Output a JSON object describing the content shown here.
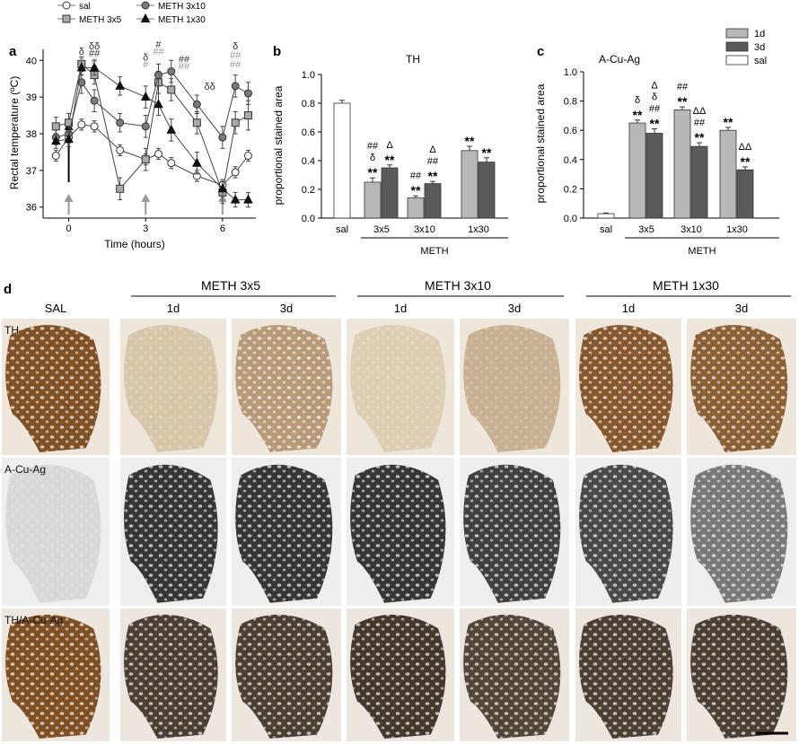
{
  "panel_labels": {
    "a": "a",
    "b": "b",
    "c": "c",
    "d": "d"
  },
  "colors": {
    "sal_fill": "#ffffff",
    "meth3x5_fill": "#a9a9a9",
    "meth3x10_fill": "#7a7a7a",
    "meth1x30_fill": "#111111",
    "bar_1d": "#b8b8b8",
    "bar_3d": "#5a5a5a",
    "bar_sal": "#ffffff",
    "arrow_grey": "#9a9a9a",
    "arrow_black": "#000000",
    "th_stain": "#7a4a1c",
    "cuag_stain": "#232323"
  },
  "chart_data": [
    {
      "id": "a",
      "type": "line",
      "title": "",
      "xlabel": "Time (hours)",
      "ylabel": "Rectal temperature (ºC)",
      "xlim": [
        -1,
        7.3
      ],
      "ylim": [
        35.7,
        40.3
      ],
      "x_ticks": [
        0,
        3,
        6
      ],
      "x_tick_labels": [
        "0",
        "3",
        "6"
      ],
      "y_ticks": [
        36,
        37,
        38,
        39,
        40
      ],
      "y_tick_labels": [
        "36",
        "37",
        "38",
        "39",
        "40"
      ],
      "legend": {
        "position": "top",
        "entries": [
          {
            "label": "sal",
            "marker": "circle",
            "fill": "#ffffff"
          },
          {
            "label": "METH 3x5",
            "marker": "square",
            "fill": "#a9a9a9"
          },
          {
            "label": "METH 3x10",
            "marker": "circle",
            "fill": "#7a7a7a"
          },
          {
            "label": "METH 1x30",
            "marker": "triangle",
            "fill": "#111111"
          }
        ]
      },
      "x": [
        -0.5,
        0,
        0.5,
        1,
        2,
        3,
        3.5,
        4,
        5,
        6,
        6.5,
        7
      ],
      "series": [
        {
          "name": "sal",
          "marker": "circle",
          "fill": "#ffffff",
          "values": [
            37.4,
            37.9,
            38.25,
            38.2,
            37.55,
            37.3,
            37.45,
            37.2,
            36.85,
            36.6,
            36.95,
            37.4
          ],
          "errors": [
            0.15,
            0.15,
            0.15,
            0.15,
            0.15,
            0.15,
            0.15,
            0.15,
            0.15,
            0.15,
            0.15,
            0.15
          ]
        },
        {
          "name": "METH 3x5",
          "marker": "square",
          "fill": "#a9a9a9",
          "values": [
            38.2,
            38.3,
            39.9,
            39.6,
            36.5,
            37.3,
            39.4,
            39.2,
            38.3,
            36.4,
            38.3,
            38.5
          ],
          "errors": [
            0.25,
            0.25,
            0.2,
            0.25,
            0.3,
            0.3,
            0.3,
            0.3,
            0.3,
            0.3,
            0.3,
            0.4
          ]
        },
        {
          "name": "METH 3x10",
          "marker": "circle",
          "fill": "#7a7a7a",
          "values": [
            37.9,
            38.0,
            39.4,
            38.9,
            38.3,
            38.2,
            39.6,
            39.7,
            38.8,
            37.9,
            39.3,
            39.1
          ],
          "errors": [
            0.2,
            0.2,
            0.3,
            0.3,
            0.25,
            0.3,
            0.3,
            0.3,
            0.25,
            0.3,
            0.3,
            0.3
          ]
        },
        {
          "name": "METH 1x30",
          "marker": "triangle",
          "fill": "#111111",
          "values": [
            37.8,
            37.85,
            39.8,
            39.8,
            39.3,
            39.0,
            38.8,
            38.1,
            37.2,
            36.5,
            36.2,
            36.2
          ],
          "errors": [
            0.2,
            0.2,
            0.2,
            0.2,
            0.25,
            0.3,
            0.3,
            0.3,
            0.3,
            0.2,
            0.2,
            0.2
          ]
        }
      ],
      "injection_arrows": [
        {
          "x": 0,
          "color": "grey"
        },
        {
          "x": 3,
          "color": "grey"
        },
        {
          "x": 6,
          "color": "grey"
        },
        {
          "x": 0,
          "color": "black"
        }
      ],
      "annotations": [
        {
          "x": 0.5,
          "y": 40.15,
          "text": "δ",
          "color": "#333"
        },
        {
          "x": 0.5,
          "y": 39.95,
          "text": "#",
          "color": "#999"
        },
        {
          "x": 1,
          "y": 40.3,
          "text": "δδ",
          "color": "#333"
        },
        {
          "x": 1,
          "y": 40.1,
          "text": "##",
          "color": "#333"
        },
        {
          "x": 1,
          "y": 39.9,
          "text": "#",
          "color": "#999"
        },
        {
          "x": 3,
          "y": 40.0,
          "text": "δ",
          "color": "#333"
        },
        {
          "x": 3,
          "y": 39.8,
          "text": "#",
          "color": "#999"
        },
        {
          "x": 3.5,
          "y": 40.35,
          "text": "#",
          "color": "#333"
        },
        {
          "x": 3.5,
          "y": 40.15,
          "text": "##",
          "color": "#999"
        },
        {
          "x": 4.5,
          "y": 39.95,
          "text": "##",
          "color": "#333"
        },
        {
          "x": 4.5,
          "y": 39.75,
          "text": "##",
          "color": "#999"
        },
        {
          "x": 5.5,
          "y": 39.2,
          "text": "δδ",
          "color": "#333"
        },
        {
          "x": 6.5,
          "y": 40.3,
          "text": "δ",
          "color": "#333"
        },
        {
          "x": 6.5,
          "y": 40.05,
          "text": "##",
          "color": "#999"
        },
        {
          "x": 6.5,
          "y": 39.8,
          "text": "##",
          "color": "#999"
        }
      ]
    },
    {
      "id": "b",
      "type": "bar",
      "title": "TH",
      "ylabel": "proportional stained area",
      "ylim": [
        0,
        1.0
      ],
      "y_ticks": [
        0.0,
        0.2,
        0.4,
        0.6,
        0.8,
        1.0
      ],
      "y_tick_labels": [
        "0.0",
        "0.2",
        "0.4",
        "0.6",
        "0.8",
        "1.0"
      ],
      "categories": [
        "sal",
        "3x5",
        "3x10",
        "1x30"
      ],
      "group_label": "METH",
      "bars": [
        {
          "cat": 0,
          "series": "sal",
          "value": 0.8,
          "error": 0.02,
          "color": "#ffffff",
          "marks": []
        },
        {
          "cat": 1,
          "series": "1d",
          "value": 0.25,
          "error": 0.03,
          "color": "#b8b8b8",
          "marks": [
            "##",
            "δ",
            "**"
          ]
        },
        {
          "cat": 1,
          "series": "3d",
          "value": 0.35,
          "error": 0.02,
          "color": "#5a5a5a",
          "marks": [
            "Δ",
            "**"
          ]
        },
        {
          "cat": 2,
          "series": "1d",
          "value": 0.14,
          "error": 0.015,
          "color": "#b8b8b8",
          "marks": [
            "##",
            "**"
          ]
        },
        {
          "cat": 2,
          "series": "3d",
          "value": 0.24,
          "error": 0.015,
          "color": "#5a5a5a",
          "marks": [
            "Δ",
            "##",
            "**"
          ]
        },
        {
          "cat": 3,
          "series": "1d",
          "value": 0.47,
          "error": 0.03,
          "color": "#b8b8b8",
          "marks": [
            "**"
          ]
        },
        {
          "cat": 3,
          "series": "3d",
          "value": 0.39,
          "error": 0.03,
          "color": "#5a5a5a",
          "marks": [
            "**"
          ]
        }
      ]
    },
    {
      "id": "c",
      "type": "bar",
      "title": "A-Cu-Ag",
      "ylabel": "proportional stained area",
      "ylim": [
        0,
        1.0
      ],
      "y_ticks": [
        0.0,
        0.2,
        0.4,
        0.6,
        0.8,
        1.0
      ],
      "y_tick_labels": [
        "0.0",
        "0.2",
        "0.4",
        "0.6",
        "0.8",
        "1.0"
      ],
      "categories": [
        "sal",
        "3x5",
        "3x10",
        "1x30"
      ],
      "group_label": "METH",
      "legend": {
        "position": "top-right",
        "entries": [
          {
            "label": "1d",
            "color": "#b8b8b8"
          },
          {
            "label": "3d",
            "color": "#5a5a5a"
          },
          {
            "label": "sal",
            "color": "#ffffff"
          }
        ]
      },
      "bars": [
        {
          "cat": 0,
          "series": "sal",
          "value": 0.03,
          "error": 0.005,
          "color": "#ffffff",
          "marks": []
        },
        {
          "cat": 1,
          "series": "1d",
          "value": 0.65,
          "error": 0.02,
          "color": "#b8b8b8",
          "marks": [
            "δ",
            "**"
          ]
        },
        {
          "cat": 1,
          "series": "3d",
          "value": 0.58,
          "error": 0.03,
          "color": "#5a5a5a",
          "marks": [
            "Δ",
            "δ",
            "##",
            "**"
          ]
        },
        {
          "cat": 2,
          "series": "1d",
          "value": 0.74,
          "error": 0.02,
          "color": "#b8b8b8",
          "marks": [
            "##",
            "**"
          ]
        },
        {
          "cat": 2,
          "series": "3d",
          "value": 0.49,
          "error": 0.025,
          "color": "#5a5a5a",
          "marks": [
            "ΔΔ",
            "##",
            "**"
          ]
        },
        {
          "cat": 3,
          "series": "1d",
          "value": 0.6,
          "error": 0.02,
          "color": "#b8b8b8",
          "marks": [
            "**"
          ]
        },
        {
          "cat": 3,
          "series": "3d",
          "value": 0.33,
          "error": 0.02,
          "color": "#5a5a5a",
          "marks": [
            "ΔΔ",
            "**"
          ]
        }
      ]
    }
  ],
  "panel_d": {
    "label": "d",
    "group_headers": [
      "METH 3x5",
      "METH 3x10",
      "METH 1x30"
    ],
    "col_headers": [
      "SAL",
      "1d",
      "3d",
      "1d",
      "3d",
      "1d",
      "3d"
    ],
    "row_labels": [
      "TH",
      "A-Cu-Ag",
      "TH/A-Cu-Ag"
    ],
    "stain_intensity": [
      [
        0.95,
        0.15,
        0.45,
        0.1,
        0.3,
        0.9,
        0.85
      ],
      [
        0.05,
        0.9,
        0.9,
        0.9,
        0.85,
        0.8,
        0.55
      ],
      [
        0.95,
        0.9,
        0.9,
        0.95,
        0.85,
        0.9,
        0.9
      ]
    ]
  }
}
